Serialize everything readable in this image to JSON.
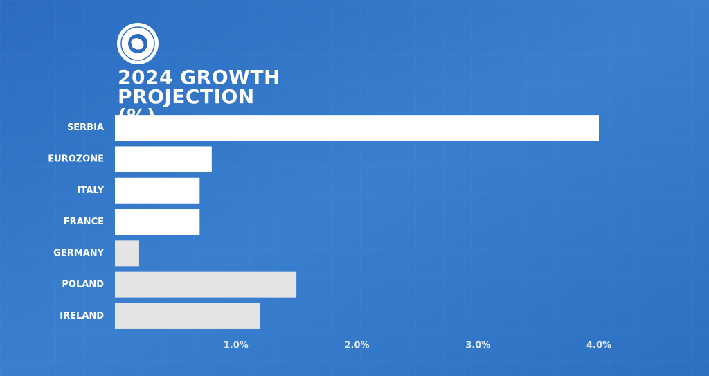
{
  "chart_data": {
    "type": "bar",
    "orientation": "horizontal",
    "title": "2024 GROWTH PROJECTION (%)",
    "categories": [
      "SERBIA",
      "EUROZONE",
      "ITALY",
      "FRANCE",
      "GERMANY",
      "POLAND",
      "IRELAND"
    ],
    "values": [
      4.0,
      0.8,
      0.7,
      0.7,
      0.2,
      1.5,
      1.2
    ],
    "colors": [
      "#ffffff",
      "#ffffff",
      "#ffffff",
      "#ffffff",
      "#e4e4e4",
      "#e4e4e4",
      "#e4e4e4"
    ],
    "xlim": [
      0,
      4.0
    ],
    "xticks": [
      {
        "value": 1.0,
        "label": "1.0%"
      },
      {
        "value": 2.0,
        "label": "2.0%"
      },
      {
        "value": 3.0,
        "label": "3.0%"
      },
      {
        "value": 4.0,
        "label": "4.0%"
      }
    ]
  }
}
